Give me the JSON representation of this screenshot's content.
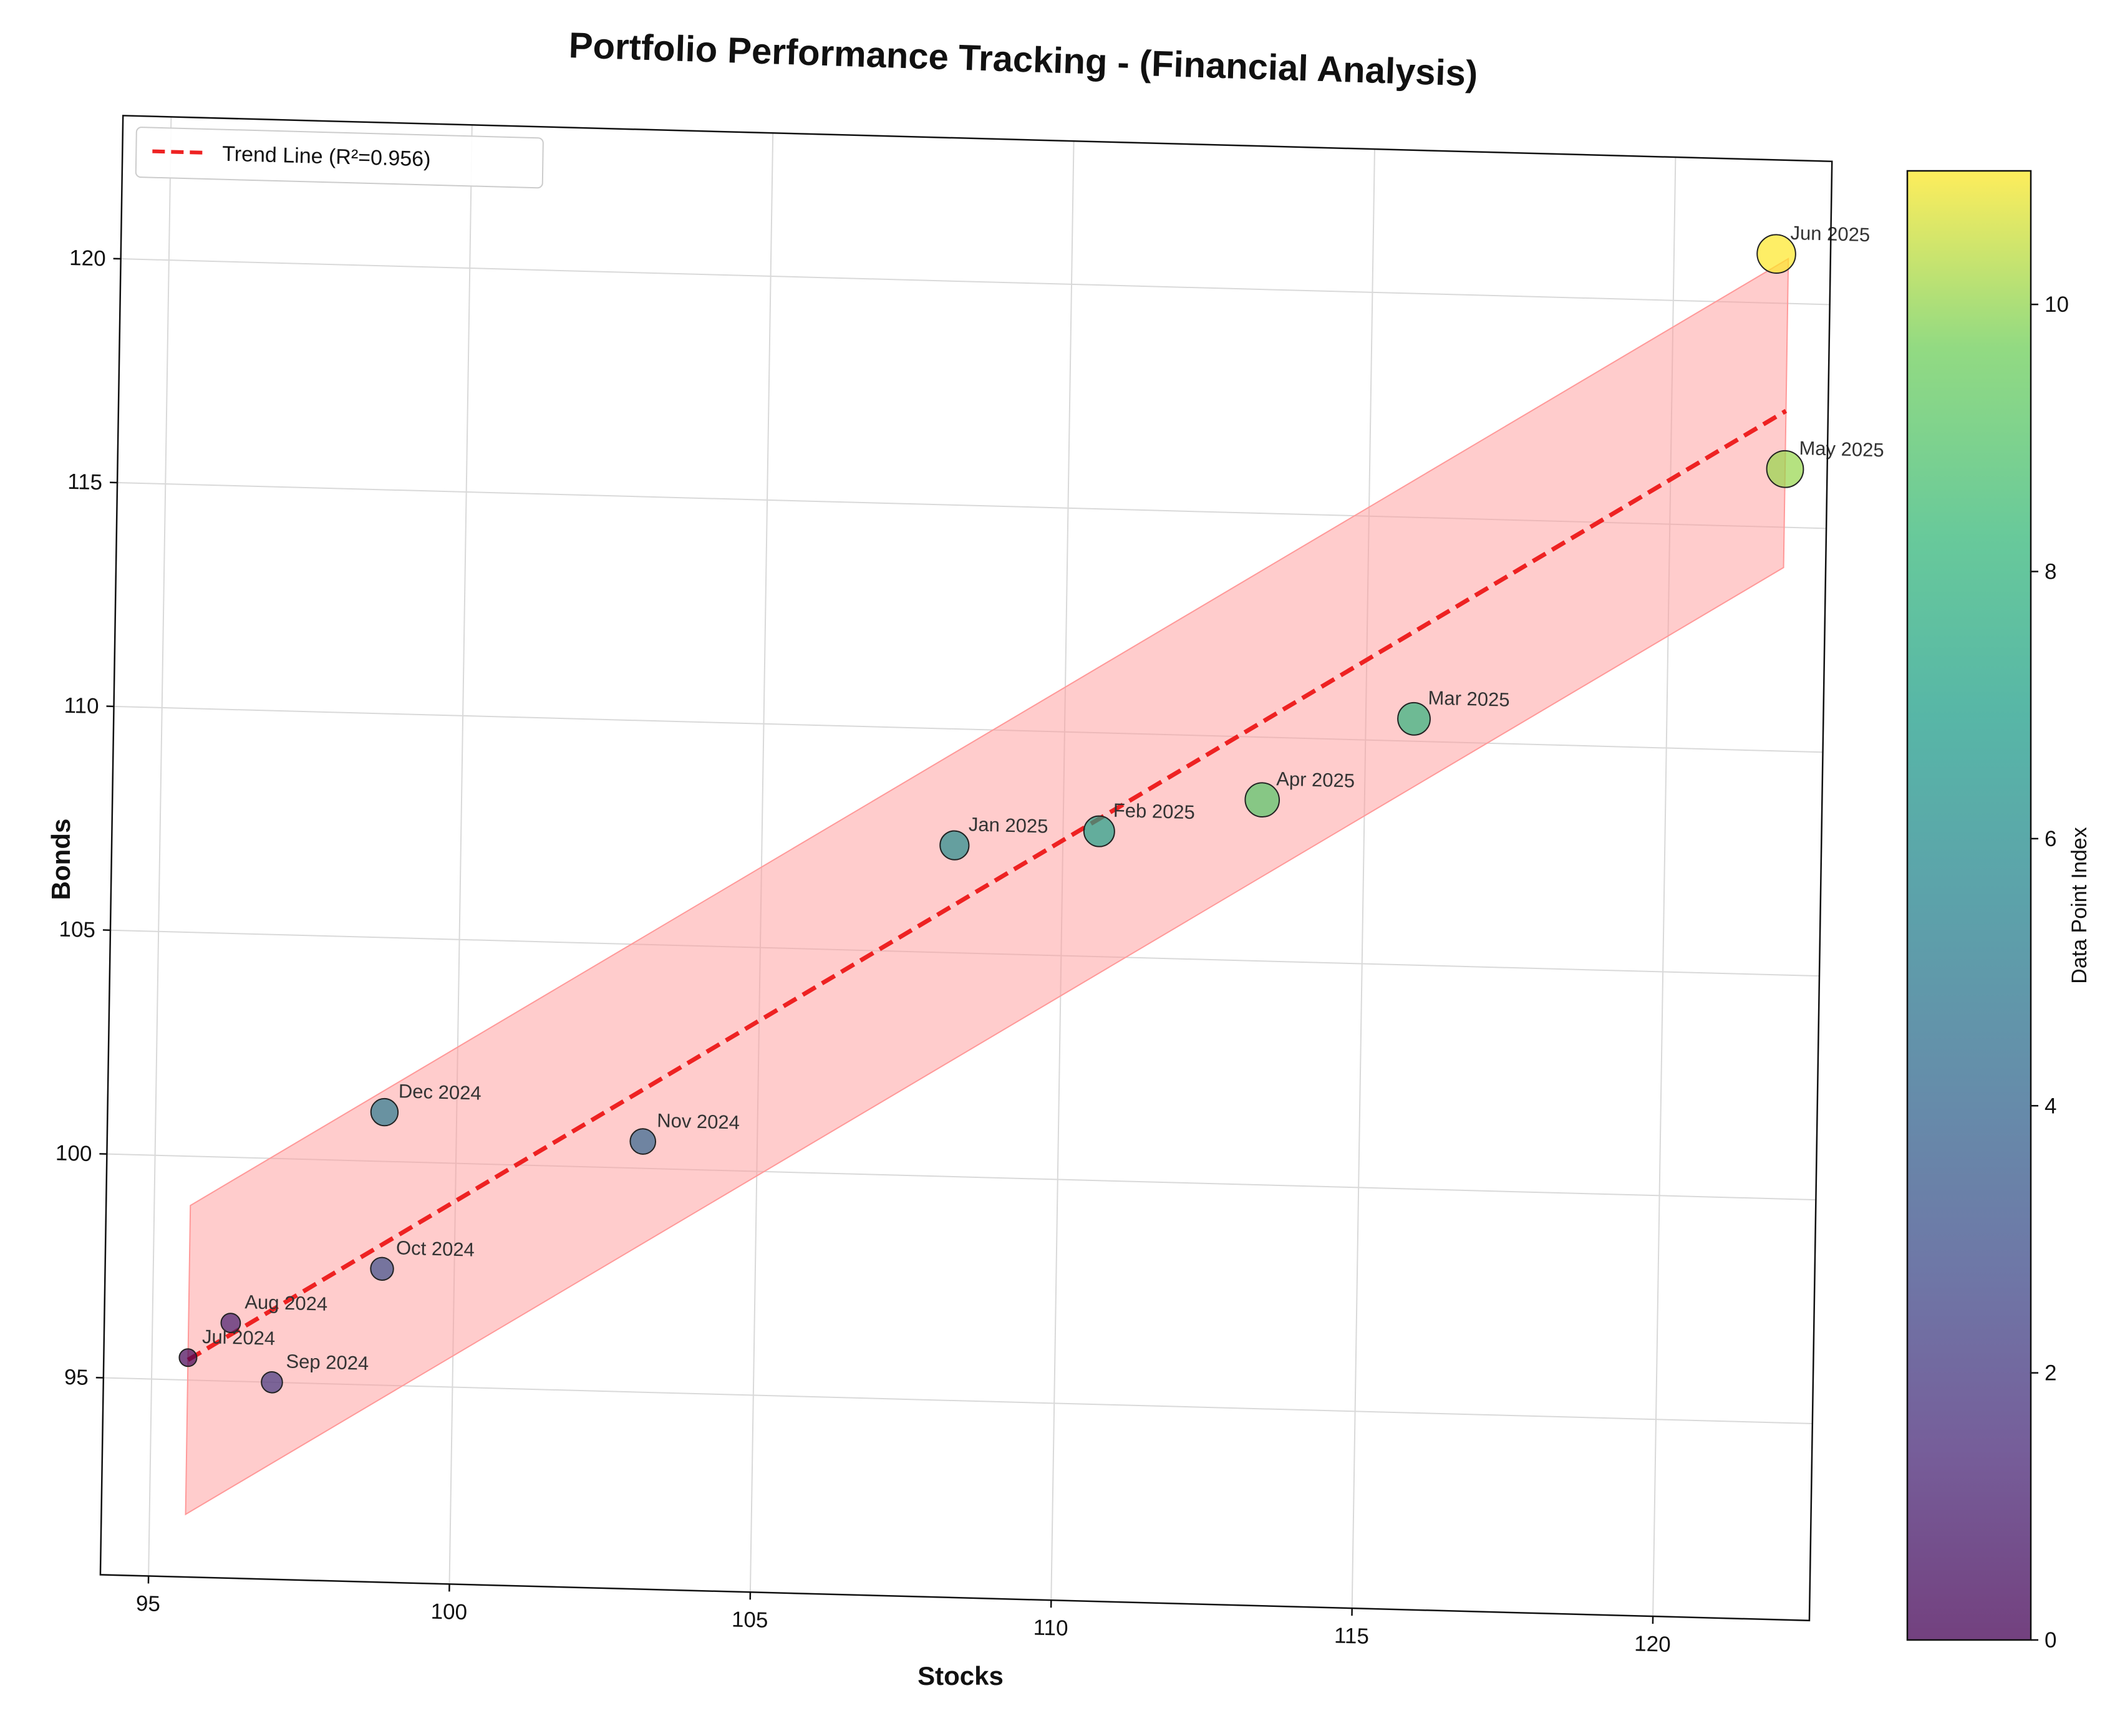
{
  "chart_data": {
    "type": "scatter",
    "title": "Portfolio Performance Tracking - (Financial Analysis)",
    "xlabel": "Stocks",
    "ylabel": "Bonds",
    "xlim": [
      94.2,
      122.6
    ],
    "ylim": [
      90.6,
      123.2
    ],
    "x_ticks": [
      95,
      100,
      105,
      110,
      115,
      120
    ],
    "y_ticks": [
      95,
      100,
      105,
      110,
      115,
      120
    ],
    "grid": true,
    "legend_position": "top-left",
    "points": [
      {
        "label": "Jul 2024",
        "x": 95.6,
        "y": 95.5,
        "index": 0,
        "size": 1.0
      },
      {
        "label": "Aug 2024",
        "x": 96.3,
        "y": 96.3,
        "index": 1,
        "size": 1.1
      },
      {
        "label": "Sep 2024",
        "x": 97.0,
        "y": 95.0,
        "index": 2,
        "size": 1.2
      },
      {
        "label": "Oct 2024",
        "x": 98.8,
        "y": 97.6,
        "index": 3,
        "size": 1.3
      },
      {
        "label": "Nov 2024",
        "x": 103.1,
        "y": 100.6,
        "index": 4,
        "size": 1.45
      },
      {
        "label": "Dec 2024",
        "x": 98.8,
        "y": 101.1,
        "index": 5,
        "size": 1.55
      },
      {
        "label": "Jan 2025",
        "x": 108.2,
        "y": 107.4,
        "index": 6,
        "size": 1.65
      },
      {
        "label": "Feb 2025",
        "x": 110.6,
        "y": 107.8,
        "index": 7,
        "size": 1.75
      },
      {
        "label": "Mar 2025",
        "x": 115.8,
        "y": 110.5,
        "index": 8,
        "size": 1.85
      },
      {
        "label": "Apr 2025",
        "x": 113.3,
        "y": 108.6,
        "index": 9,
        "size": 1.95
      },
      {
        "label": "May 2025",
        "x": 121.9,
        "y": 116.3,
        "index": 10,
        "size": 2.1
      },
      {
        "label": "Jun 2025",
        "x": 121.7,
        "y": 121.1,
        "index": 11,
        "size": 2.2
      }
    ],
    "trend_line": {
      "label": "Trend Line (R²=0.956)",
      "x": [
        95.6,
        121.9
      ],
      "y": [
        95.45,
        117.6
      ],
      "color": "#ee2222"
    },
    "confidence_band": {
      "upper": [
        [
          95.6,
          98.9
        ],
        [
          121.9,
          121.0
        ]
      ],
      "lower": [
        [
          95.6,
          92.0
        ],
        [
          121.9,
          114.1
        ]
      ],
      "color": "#ff9999"
    },
    "colorbar": {
      "label": "Data Point Index",
      "ticks": [
        0,
        2,
        4,
        6,
        8,
        10
      ],
      "range": [
        0,
        11
      ],
      "colormap": "viridis"
    }
  }
}
